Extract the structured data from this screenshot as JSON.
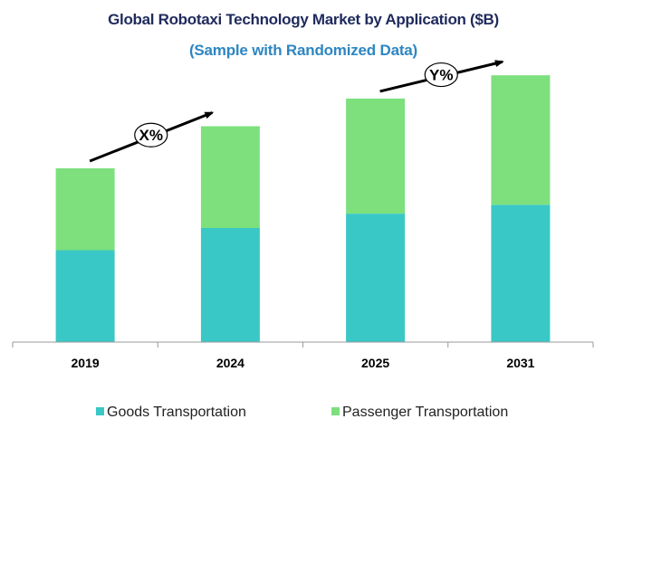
{
  "chart_data": {
    "type": "bar",
    "stacked": true,
    "title": "Global Robotaxi Technology Market by Application ($B)",
    "subtitle": "(Sample with Randomized Data)",
    "categories": [
      "2019",
      "2024",
      "2025",
      "2031"
    ],
    "series": [
      {
        "name": "Goods Transportation",
        "color": "#39c8c6",
        "values": [
          83,
          103,
          116,
          124
        ]
      },
      {
        "name": "Passenger Transportation",
        "color": "#7de07d",
        "values": [
          74,
          92,
          104,
          117
        ]
      }
    ],
    "ylim": [
      0,
      260
    ],
    "grid": false,
    "y_axis_visible": false,
    "legend": "bottom",
    "annotations": [
      {
        "label": "X%",
        "from": "2019",
        "to": "2024"
      },
      {
        "label": "Y%",
        "from": "2025",
        "to": "2031"
      }
    ]
  }
}
